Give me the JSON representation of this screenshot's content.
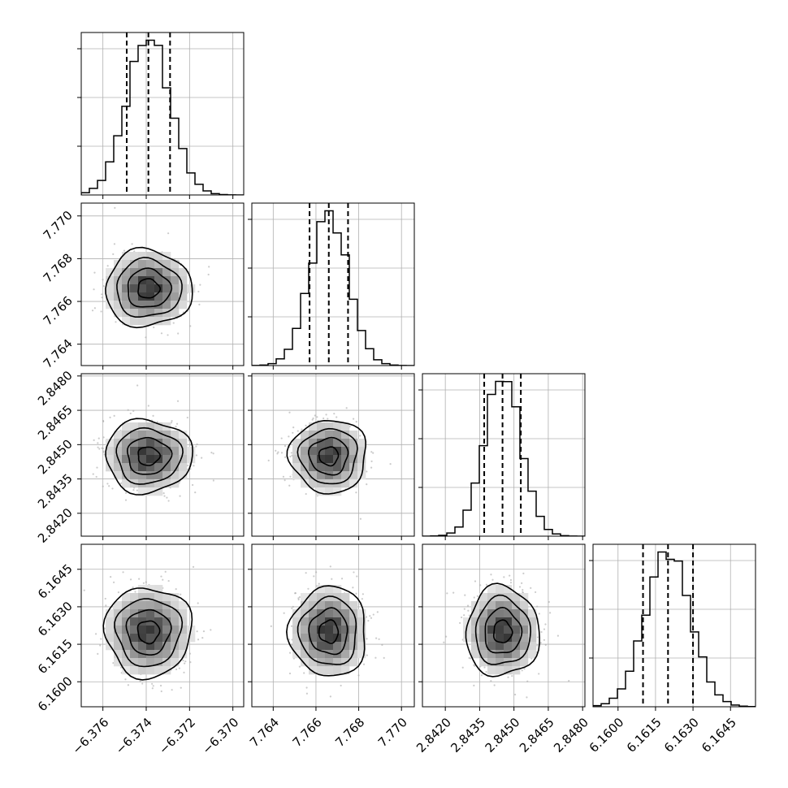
{
  "chart_data": {
    "type": "corner",
    "grid": true,
    "parameters": [
      {
        "range": [
          -6.377,
          -6.3695
        ],
        "ticks": [
          -6.376,
          -6.374,
          -6.372,
          -6.37
        ],
        "tick_labels": [
          "−6.376",
          "−6.374",
          "−6.372",
          "−6.370"
        ],
        "quantiles": [
          -6.3749,
          -6.3739,
          -6.3729
        ],
        "center": -6.3739,
        "sigma": 0.001
      },
      {
        "range": [
          7.763,
          7.7706
        ],
        "ticks": [
          7.764,
          7.766,
          7.768,
          7.77
        ],
        "tick_labels": [
          "7.764",
          "7.766",
          "7.768",
          "7.770"
        ],
        "quantiles": [
          7.7657,
          7.7666,
          7.7675
        ],
        "center": 7.7666,
        "sigma": 0.0009
      },
      {
        "range": [
          2.841,
          2.8481
        ],
        "ticks": [
          2.842,
          2.8435,
          2.845,
          2.8465,
          2.848
        ],
        "tick_labels": [
          "2.8420",
          "2.8435",
          "2.8450",
          "2.8465",
          "2.8480"
        ],
        "quantiles": [
          2.8437,
          2.8445,
          2.8453
        ],
        "center": 2.8445,
        "sigma": 0.0008
      },
      {
        "range": [
          6.159,
          6.1655
        ],
        "ticks": [
          6.16,
          6.1615,
          6.163,
          6.1645
        ],
        "tick_labels": [
          "6.1600",
          "6.1615",
          "6.1630",
          "6.1645"
        ],
        "quantiles": [
          6.161,
          6.162,
          6.163
        ],
        "center": 6.162,
        "sigma": 0.0009
      }
    ],
    "histogram_bins": 20,
    "contour_levels_sigma": [
      0.5,
      1.0,
      1.5,
      2.0
    ],
    "colors": {
      "hist_line": "#000000",
      "quantile_line": "#000000",
      "contour": "#000000",
      "scatter_points": "#a9a9a9",
      "density_dark": "#000000",
      "grid": "#b0b0b0",
      "frame": "#000000"
    }
  }
}
